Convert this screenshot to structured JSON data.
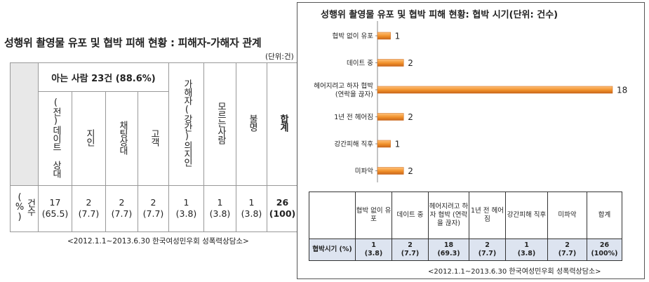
{
  "left": {
    "title": "성행위 촬영물 유포 및 협박 피해 현황 : 피해자-가해자 관계",
    "unit": "(단위:건)",
    "group_header": "아는 사람 23건 (88.6%)",
    "row_label": "건수(%)",
    "columns": [
      {
        "label": "(전)데이트 상대",
        "count": "17",
        "pct": "(65.5)"
      },
      {
        "label": "지인",
        "count": "2",
        "pct": "(7.7)"
      },
      {
        "label": "채팅상대",
        "count": "2",
        "pct": "(7.7)"
      },
      {
        "label": "고객",
        "count": "2",
        "pct": "(7.7)"
      },
      {
        "label": "가해자(강간)의지인",
        "count": "1",
        "pct": "(3.8)"
      },
      {
        "label": "모르는사람",
        "count": "1",
        "pct": "(3.8)"
      },
      {
        "label": "불명",
        "count": "1",
        "pct": "(3.8)"
      },
      {
        "label": "합계",
        "count": "26",
        "pct": "(100)"
      }
    ],
    "note": "<2012.1.1~2013.6.30 한국여성민우회 성폭력상담소>"
  },
  "right": {
    "table_headers": [
      "협박 없이 유포",
      "데이트 중",
      "헤어지려고 하자 협박 (연락을 끊자)",
      "1년 전 헤어짐",
      "강간피해 직후",
      "미파악",
      "합계"
    ],
    "row_label": "협박시기 (%)",
    "table_values": [
      {
        "count": "1",
        "pct": "(3.8)"
      },
      {
        "count": "2",
        "pct": "(7.7)"
      },
      {
        "count": "18",
        "pct": "(69.3)"
      },
      {
        "count": "2",
        "pct": "(7.7)"
      },
      {
        "count": "1",
        "pct": "(3.8)"
      },
      {
        "count": "2",
        "pct": "(7.7)"
      },
      {
        "count": "26",
        "pct": "(100%)"
      }
    ],
    "note": "<2012.1.1~2013.6.30 한국여성민우회 성폭력상담소>"
  },
  "chart_data": {
    "type": "bar",
    "orientation": "horizontal",
    "title": "성행위 촬영물 유포 및 협박 피해 현황: 협박 시기(단위: 건수)",
    "categories": [
      "협박 없이 유포",
      "데이트 중",
      "헤어지려고 하자 협박 (연락을 끊자)",
      "1년 전 헤어짐",
      "강간피해 직후",
      "미파악"
    ],
    "category_lines": [
      [
        "협박 없이 유포"
      ],
      [
        "데이트 중"
      ],
      [
        "헤어지려고 하자 협박",
        "(연락을 끊자)"
      ],
      [
        "1년 전 헤어짐"
      ],
      [
        "강간피해 직후"
      ],
      [
        "미파악"
      ]
    ],
    "values": [
      1,
      2,
      18,
      2,
      1,
      2
    ],
    "xlim": [
      0,
      18
    ],
    "grid": false,
    "bar_color": "#f0902a"
  }
}
